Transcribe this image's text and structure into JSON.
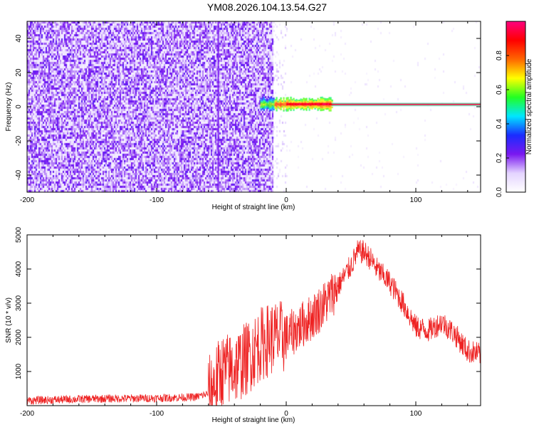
{
  "title": "YM08.2026.104.13.54.G27",
  "chart_data": [
    {
      "type": "heatmap",
      "xlabel": "Height of straight line (km)",
      "ylabel": "Frequency (Hz)",
      "xlim": [
        -200,
        150
      ],
      "ylim": [
        -50,
        50
      ],
      "x_ticks": [
        "-200",
        "-100",
        "0",
        "100"
      ],
      "y_ticks": [
        "-40",
        "-20",
        "0",
        "20",
        "40"
      ],
      "colorbar": {
        "label": "Normalized spectral amplitude",
        "range": [
          0,
          1
        ],
        "ticks": [
          "0.0",
          "0.2",
          "0.4",
          "0.6",
          "0.8"
        ],
        "colormap": [
          "#ffffff",
          "#e4d4ff",
          "#7a18f0",
          "#1a2cff",
          "#00e6ff",
          "#22ff22",
          "#ffff00",
          "#ff6600",
          "#ff0000",
          "#ff0080"
        ]
      },
      "features": {
        "noise_region_x": [
          -200,
          -10
        ],
        "noise_level": 0.15,
        "vertical_streak_x": -53,
        "signal_line_frequency": 0.5,
        "signal_start_x": -10,
        "signal_strong_x": [
          0,
          35
        ],
        "signal_line_x": [
          35,
          150
        ]
      }
    },
    {
      "type": "line",
      "xlabel": "Height of straight line (km)",
      "ylabel": "SNR (10 * v/v)",
      "xlim": [
        -200,
        150
      ],
      "ylim": [
        0,
        5000
      ],
      "x_ticks": [
        "-200",
        "-100",
        "0",
        "100"
      ],
      "y_ticks": [
        "1000",
        "2000",
        "3000",
        "4000",
        "5000"
      ],
      "color": "#ee2222",
      "series_envelope": {
        "x": [
          -200,
          -150,
          -100,
          -70,
          -60,
          -50,
          -40,
          -30,
          -20,
          -10,
          0,
          10,
          20,
          30,
          40,
          50,
          55,
          60,
          65,
          70,
          80,
          90,
          100,
          110,
          120,
          130,
          140,
          150
        ],
        "y": [
          150,
          200,
          220,
          250,
          350,
          1000,
          1100,
          1400,
          1800,
          2000,
          2000,
          2300,
          2600,
          3000,
          3500,
          4100,
          4500,
          4500,
          4300,
          4000,
          3600,
          3000,
          2300,
          2200,
          2450,
          2100,
          1600,
          1500
        ]
      }
    }
  ]
}
